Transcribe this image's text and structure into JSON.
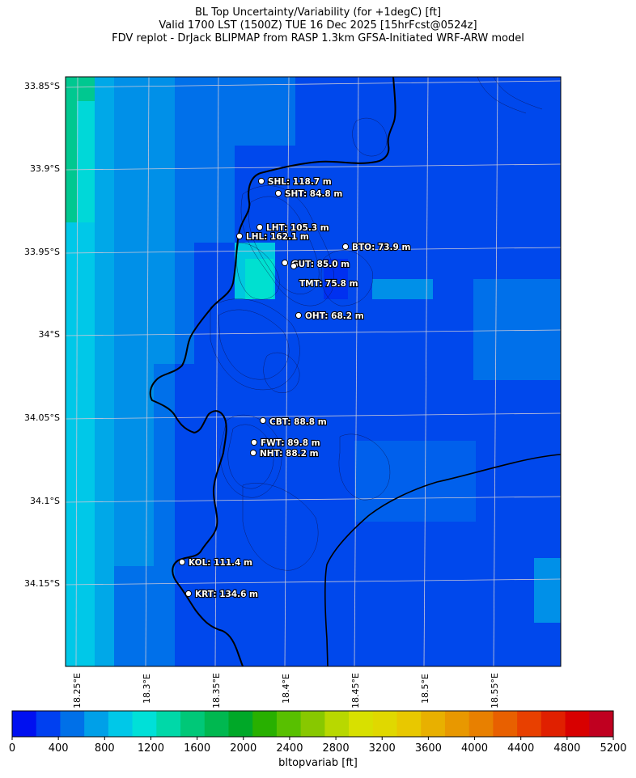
{
  "titles": {
    "line1": "BL Top Uncertainty/Variability (for +1degC) [ft]",
    "line2": "Valid 1700 LST (1500Z) TUE 16 Dec 2025 [15hrFcst@0524z]",
    "line3": "FDV replot - DrJack BLIPMAP from RASP 1.3km GFSA-Initiated WRF-ARW model"
  },
  "lat_labels": [
    "33.85°S",
    "33.9°S",
    "33.95°S",
    "34°S",
    "34.05°S",
    "34.1°S",
    "34.15°S"
  ],
  "lon_labels": [
    "18.25°E",
    "18.3°E",
    "18.35°E",
    "18.4°E",
    "18.45°E",
    "18.5°E",
    "18.55°E"
  ],
  "stations": [
    {
      "id": "SHL",
      "label": "SHL: 118.7 m"
    },
    {
      "id": "SHT",
      "label": "SHT: 84.8 m"
    },
    {
      "id": "LHT",
      "label": "LHT: 105.3 m"
    },
    {
      "id": "LHL",
      "label": "LHL: 162.1 m"
    },
    {
      "id": "BTO",
      "label": "BTO: 73.9 m"
    },
    {
      "id": "GUT",
      "label": "GUT: 85.0 m"
    },
    {
      "id": "TMT",
      "label": "TMT: 75.8 m"
    },
    {
      "id": "OHT",
      "label": "OHT: 68.2 m"
    },
    {
      "id": "CBT",
      "label": "CBT: 88.8 m"
    },
    {
      "id": "FWT",
      "label": "FWT: 89.8 m"
    },
    {
      "id": "NHT",
      "label": "NHT: 88.2 m"
    },
    {
      "id": "KOL",
      "label": "KOL: 111.4 m"
    },
    {
      "id": "KRT",
      "label": "KRT: 134.6 m"
    }
  ],
  "colorbar": {
    "label": "bltopvariab [ft]",
    "ticks": [
      "0",
      "400",
      "800",
      "1200",
      "1600",
      "2000",
      "2400",
      "2800",
      "3200",
      "3600",
      "4000",
      "4400",
      "4800",
      "5200"
    ],
    "colors": [
      "#0010f0",
      "#0040f0",
      "#0070e8",
      "#00a0e8",
      "#00c8e8",
      "#00e0d8",
      "#00d8a8",
      "#00c878",
      "#00b850",
      "#00a828",
      "#28b000",
      "#58c000",
      "#88c800",
      "#b8d800",
      "#d8e000",
      "#e0d800",
      "#e8c800",
      "#e8b000",
      "#e89800",
      "#e88000",
      "#e86000",
      "#e84000",
      "#e02000",
      "#d80000",
      "#c00020"
    ],
    "min": 0,
    "max": 5200
  },
  "colors": {
    "grid": "#c8c8d8",
    "coast": "#000000",
    "contour": "#101048"
  }
}
